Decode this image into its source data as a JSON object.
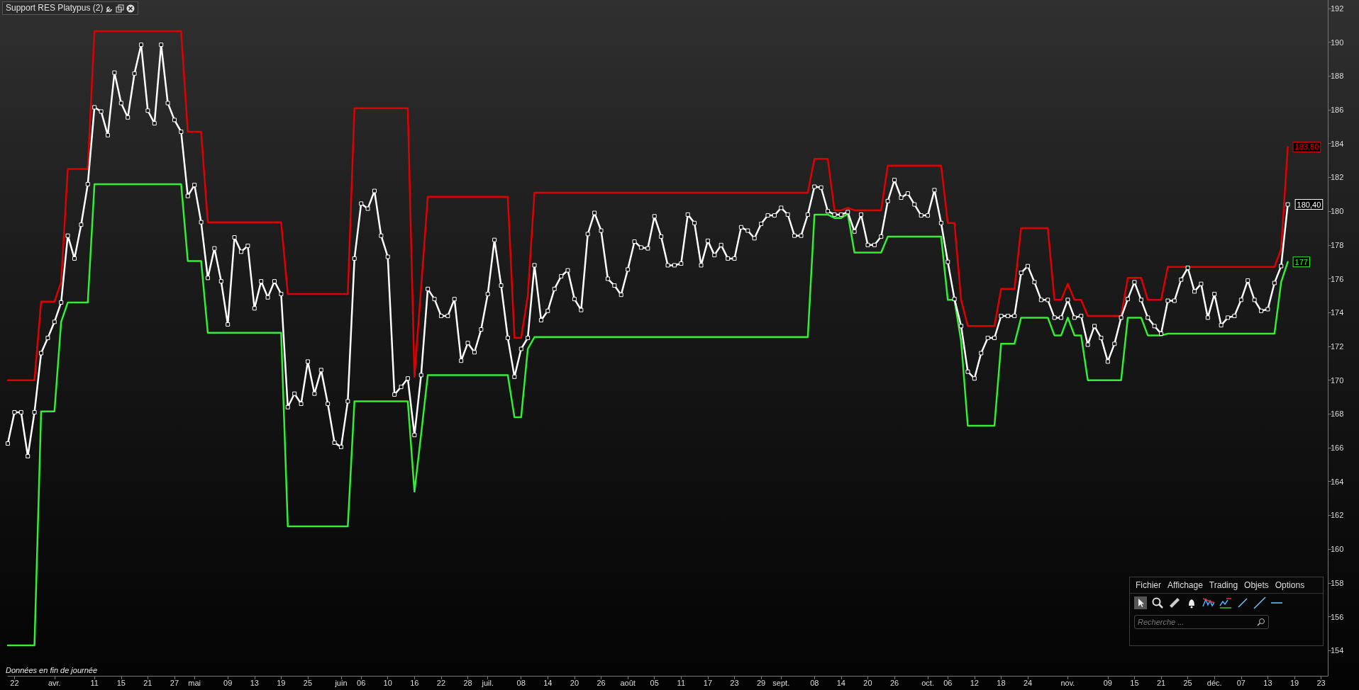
{
  "chart_data": {
    "type": "line",
    "title": "Support RES Platypus (2)",
    "categories": [
      null,
      "22",
      null,
      null,
      null,
      null,
      null,
      "avr.",
      null,
      null,
      null,
      null,
      null,
      "11",
      null,
      null,
      null,
      "15",
      null,
      null,
      null,
      "21",
      null,
      null,
      null,
      "27",
      null,
      null,
      "mai",
      null,
      null,
      null,
      null,
      "09",
      null,
      null,
      null,
      "13",
      null,
      null,
      null,
      "19",
      null,
      null,
      null,
      "25",
      null,
      null,
      null,
      null,
      "juin",
      null,
      null,
      "06",
      null,
      null,
      null,
      "10",
      null,
      null,
      null,
      "16",
      null,
      null,
      null,
      "22",
      null,
      null,
      null,
      "28",
      null,
      null,
      "juil.",
      null,
      null,
      null,
      null,
      "08",
      null,
      null,
      null,
      "14",
      null,
      null,
      null,
      "20",
      null,
      null,
      null,
      "26",
      null,
      null,
      null,
      "août",
      null,
      null,
      null,
      "05",
      null,
      null,
      null,
      "11",
      null,
      null,
      null,
      "17",
      null,
      null,
      null,
      "23",
      null,
      null,
      null,
      "29",
      null,
      null,
      "sept.",
      null,
      null,
      null,
      null,
      "08",
      null,
      null,
      null,
      "14",
      null,
      null,
      null,
      "20",
      null,
      null,
      null,
      "26",
      null,
      null,
      null,
      null,
      "oct.",
      null,
      null,
      "06",
      null,
      null,
      null,
      "12",
      null,
      null,
      null,
      "18",
      null,
      null,
      null,
      "24",
      null,
      null,
      null,
      null,
      null,
      "nov.",
      null,
      null,
      null,
      null,
      null,
      "09",
      null,
      null,
      null,
      "15",
      null,
      null,
      null,
      "21",
      null,
      null,
      null,
      "25",
      null,
      null,
      null,
      "déc.",
      null,
      null,
      null,
      "07",
      null,
      null,
      null,
      "13",
      null,
      null,
      null,
      "19",
      null,
      null,
      null,
      "23",
      null
    ],
    "series": [
      {
        "color": "#e00000",
        "marker": "none",
        "values": [
          170,
          170,
          170,
          170,
          170,
          174.65,
          174.65,
          174.65,
          175.8,
          182.5,
          182.5,
          182.5,
          182.5,
          190.65,
          190.65,
          190.65,
          190.65,
          190.65,
          190.65,
          190.65,
          190.65,
          190.65,
          190.65,
          190.65,
          190.65,
          190.65,
          190.65,
          184.7,
          184.7,
          184.7,
          179.35,
          179.35,
          179.35,
          179.35,
          179.35,
          179.35,
          179.35,
          179.35,
          179.35,
          179.35,
          179.35,
          179.35,
          175.1,
          175.1,
          175.1,
          175.1,
          175.1,
          175.1,
          175.1,
          175.1,
          175.1,
          175.1,
          186.1,
          186.1,
          186.1,
          186.1,
          186.1,
          186.1,
          186.1,
          186.1,
          186.1,
          170.2,
          175.5,
          180.85,
          180.85,
          180.85,
          180.85,
          180.85,
          180.85,
          180.85,
          180.85,
          180.85,
          180.85,
          180.85,
          180.85,
          180.85,
          172.5,
          172.5,
          175,
          181.1,
          181.1,
          181.1,
          181.1,
          181.1,
          181.1,
          181.1,
          181.1,
          181.1,
          181.1,
          181.1,
          181.1,
          181.1,
          181.1,
          181.1,
          181.1,
          181.1,
          181.1,
          181.1,
          181.1,
          181.1,
          181.1,
          181.1,
          181.1,
          181.1,
          181.1,
          181.1,
          181.1,
          181.1,
          181.1,
          181.1,
          181.1,
          181.1,
          181.1,
          181.1,
          181.1,
          181.1,
          181.1,
          181.1,
          181.1,
          181.1,
          181.1,
          183.1,
          183.1,
          183.1,
          180.05,
          180.05,
          180.2,
          180.05,
          180.05,
          180.05,
          180.05,
          180.05,
          182.7,
          182.7,
          182.7,
          182.7,
          182.7,
          182.7,
          182.7,
          182.7,
          182.7,
          179.3,
          179.3,
          174.75,
          173.2,
          173.2,
          173.2,
          173.2,
          173.2,
          175.4,
          175.4,
          175.4,
          179,
          179,
          179,
          179,
          179,
          174.75,
          174.75,
          175.7,
          174.75,
          174.75,
          173.8,
          173.8,
          173.8,
          173.8,
          173.8,
          173.8,
          176.05,
          176.05,
          176.05,
          174.75,
          174.75,
          174.75,
          176.7,
          176.7,
          176.7,
          176.7,
          176.7,
          176.7,
          176.7,
          176.7,
          176.7,
          176.7,
          176.7,
          176.7,
          176.7,
          176.7,
          176.7,
          176.7,
          176.7,
          177.75,
          183.8,
          null,
          null,
          null,
          null,
          null,
          null
        ],
        "value_labels": [
          null,
          null,
          null,
          null,
          null,
          null,
          null,
          null,
          null,
          null,
          null,
          null,
          null,
          null,
          null,
          null,
          null,
          null,
          null,
          null,
          null,
          null,
          null,
          null,
          null,
          null,
          null,
          null,
          null,
          null,
          null,
          null,
          null,
          null,
          null,
          null,
          null,
          null,
          null,
          null,
          null,
          null,
          null,
          null,
          null,
          null,
          null,
          null,
          null,
          null,
          null,
          null,
          null,
          null,
          null,
          null,
          null,
          null,
          null,
          null,
          null,
          null,
          null,
          null,
          null,
          null,
          null,
          null,
          null,
          null,
          null,
          null,
          null,
          null,
          null,
          null,
          null,
          null,
          null,
          null,
          null,
          null,
          null,
          null,
          null,
          null,
          null,
          null,
          null,
          null,
          null,
          null,
          null,
          null,
          null,
          null,
          null,
          null,
          null,
          null,
          null,
          null,
          null,
          null,
          null,
          null,
          null,
          null,
          null,
          null,
          null,
          null,
          null,
          null,
          null,
          null,
          null,
          null,
          null,
          null,
          null,
          null,
          null,
          null,
          null,
          null,
          null,
          null,
          null,
          null,
          null,
          null,
          null,
          null,
          null,
          null,
          null,
          null,
          null,
          null,
          null,
          null,
          null,
          null,
          null,
          null,
          null,
          null,
          null,
          null,
          null,
          null,
          null,
          null,
          null,
          null,
          null,
          null,
          null,
          null,
          null,
          null,
          null,
          null,
          null,
          null,
          null,
          null,
          null,
          null,
          null,
          null,
          null,
          null,
          null,
          null,
          null,
          null,
          null,
          null,
          null,
          null,
          null,
          null,
          null,
          null,
          null,
          null,
          null,
          null,
          null,
          null,
          "183,80",
          null,
          null,
          null,
          null,
          null,
          null
        ]
      },
      {
        "color": "#33ee33",
        "marker": "none",
        "values": [
          154.3,
          154.3,
          154.3,
          154.3,
          154.3,
          168.15,
          168.15,
          168.15,
          173.45,
          174.6,
          174.6,
          174.6,
          174.6,
          181.6,
          181.6,
          181.6,
          181.6,
          181.6,
          181.6,
          181.6,
          181.6,
          181.6,
          181.6,
          181.6,
          181.6,
          181.6,
          181.6,
          177.05,
          177.05,
          177.05,
          172.8,
          172.8,
          172.8,
          172.8,
          172.8,
          172.8,
          172.8,
          172.8,
          172.8,
          172.8,
          172.8,
          172.8,
          161.35,
          161.35,
          161.35,
          161.35,
          161.35,
          161.35,
          161.35,
          161.35,
          161.35,
          161.35,
          168.75,
          168.75,
          168.75,
          168.75,
          168.75,
          168.75,
          168.75,
          168.75,
          168.75,
          163.4,
          166.8,
          170.3,
          170.3,
          170.3,
          170.3,
          170.3,
          170.3,
          170.3,
          170.3,
          170.3,
          170.3,
          170.3,
          170.3,
          170.3,
          167.8,
          167.8,
          171.85,
          172.55,
          172.55,
          172.55,
          172.55,
          172.55,
          172.55,
          172.55,
          172.55,
          172.55,
          172.55,
          172.55,
          172.55,
          172.55,
          172.55,
          172.55,
          172.55,
          172.55,
          172.55,
          172.55,
          172.55,
          172.55,
          172.55,
          172.55,
          172.55,
          172.55,
          172.55,
          172.55,
          172.55,
          172.55,
          172.55,
          172.55,
          172.55,
          172.55,
          172.55,
          172.55,
          172.55,
          172.55,
          172.55,
          172.55,
          172.55,
          172.55,
          172.55,
          179.8,
          179.8,
          179.8,
          179.6,
          179.6,
          179.85,
          177.55,
          177.55,
          177.55,
          177.55,
          177.55,
          178.5,
          178.5,
          178.5,
          178.5,
          178.5,
          178.5,
          178.5,
          178.5,
          178.5,
          174.75,
          174.75,
          172.3,
          167.3,
          167.3,
          167.3,
          167.3,
          167.3,
          172.15,
          172.15,
          172.15,
          173.7,
          173.7,
          173.7,
          173.7,
          173.7,
          172.65,
          172.65,
          173.7,
          172.65,
          172.65,
          170,
          170,
          170,
          170,
          170,
          170,
          173.7,
          173.7,
          173.7,
          172.65,
          172.65,
          172.65,
          172.75,
          172.75,
          172.75,
          172.75,
          172.75,
          172.75,
          172.75,
          172.75,
          172.75,
          172.75,
          172.75,
          172.75,
          172.75,
          172.75,
          172.75,
          172.75,
          172.75,
          175.8,
          177,
          null,
          null,
          null,
          null,
          null,
          null
        ],
        "value_labels": [
          null,
          null,
          null,
          null,
          null,
          null,
          null,
          null,
          null,
          null,
          null,
          null,
          null,
          null,
          null,
          null,
          null,
          null,
          null,
          null,
          null,
          null,
          null,
          null,
          null,
          null,
          null,
          null,
          null,
          null,
          null,
          null,
          null,
          null,
          null,
          null,
          null,
          null,
          null,
          null,
          null,
          null,
          null,
          null,
          null,
          null,
          null,
          null,
          null,
          null,
          null,
          null,
          null,
          null,
          null,
          null,
          null,
          null,
          null,
          null,
          null,
          null,
          null,
          null,
          null,
          null,
          null,
          null,
          null,
          null,
          null,
          null,
          null,
          null,
          null,
          null,
          null,
          null,
          null,
          null,
          null,
          null,
          null,
          null,
          null,
          null,
          null,
          null,
          null,
          null,
          null,
          null,
          null,
          null,
          null,
          null,
          null,
          null,
          null,
          null,
          null,
          null,
          null,
          null,
          null,
          null,
          null,
          null,
          null,
          null,
          null,
          null,
          null,
          null,
          null,
          null,
          null,
          null,
          null,
          null,
          null,
          null,
          null,
          null,
          null,
          null,
          null,
          null,
          null,
          null,
          null,
          null,
          null,
          null,
          null,
          null,
          null,
          null,
          null,
          null,
          null,
          null,
          null,
          null,
          null,
          null,
          null,
          null,
          null,
          null,
          null,
          null,
          null,
          null,
          null,
          null,
          null,
          null,
          null,
          null,
          null,
          null,
          null,
          null,
          null,
          null,
          null,
          null,
          null,
          null,
          null,
          null,
          null,
          null,
          null,
          null,
          null,
          null,
          null,
          null,
          null,
          null,
          null,
          null,
          null,
          null,
          null,
          null,
          null,
          null,
          null,
          null,
          "177",
          null,
          null,
          null,
          null,
          null,
          null
        ]
      },
      {
        "color": "#ffffff",
        "marker": "square",
        "values": [
          166.25,
          168.1,
          168.1,
          165.5,
          168.1,
          171.6,
          172.5,
          173.45,
          174.6,
          178.55,
          177.2,
          179.2,
          181.6,
          186.15,
          185.9,
          184.5,
          188.2,
          186.4,
          185.55,
          188.15,
          189.85,
          185.95,
          185.2,
          189.85,
          186.4,
          185.4,
          184.7,
          180.9,
          181.55,
          179.35,
          176.05,
          177.8,
          175.85,
          173.3,
          178.45,
          177.6,
          177.95,
          174.25,
          175.85,
          174.9,
          175.85,
          175.1,
          168.4,
          169.2,
          168.6,
          171.1,
          169.2,
          170.6,
          168.6,
          166.3,
          166.05,
          168.75,
          177.2,
          180.45,
          180.15,
          181.2,
          178.55,
          177.3,
          169.15,
          169.6,
          170.1,
          166.75,
          170.3,
          175.4,
          174.8,
          173.8,
          173.8,
          174.8,
          171.15,
          172.2,
          171.65,
          173,
          175.1,
          178.3,
          175.6,
          172.5,
          170.2,
          171.85,
          172.5,
          176.8,
          173.55,
          174.1,
          175.4,
          176.15,
          176.5,
          174.8,
          174.15,
          178.65,
          179.9,
          178.85,
          176,
          175.6,
          175.05,
          176.55,
          178.2,
          177.85,
          177.8,
          179.7,
          178.5,
          176.8,
          176.8,
          176.9,
          179.8,
          179.3,
          176.8,
          178.25,
          177.4,
          178,
          177.2,
          177.2,
          179.05,
          178.85,
          178.4,
          179.25,
          179.75,
          179.75,
          180.2,
          179.8,
          178.55,
          178.55,
          179.8,
          181.45,
          181.4,
          180,
          179.8,
          179.8,
          179.95,
          178.8,
          179.8,
          178,
          178,
          178.5,
          180.6,
          181.85,
          180.8,
          181.05,
          180.4,
          179.75,
          179.75,
          181.25,
          179.3,
          177,
          174.8,
          173.2,
          170.5,
          170.1,
          171.6,
          172.5,
          172.5,
          173.8,
          173.8,
          173.8,
          176.35,
          176.75,
          175.8,
          174.75,
          174.75,
          173.7,
          173.7,
          174.75,
          173.7,
          173.8,
          172.1,
          173.2,
          172.5,
          171.1,
          172.15,
          173.7,
          174.8,
          175.8,
          174.75,
          173.7,
          173.2,
          172.75,
          174.7,
          174.7,
          175.95,
          176.65,
          175.25,
          175.7,
          173.7,
          175.1,
          173.25,
          173.7,
          173.8,
          174.75,
          175.9,
          174.75,
          174.1,
          174.2,
          175.75,
          176.75,
          180.4,
          null,
          null,
          null,
          null,
          null,
          null
        ],
        "value_labels": [
          null,
          null,
          null,
          null,
          null,
          null,
          null,
          null,
          null,
          null,
          null,
          null,
          null,
          null,
          null,
          null,
          null,
          null,
          null,
          null,
          null,
          null,
          null,
          null,
          null,
          null,
          null,
          null,
          null,
          null,
          null,
          null,
          null,
          null,
          null,
          null,
          null,
          null,
          null,
          null,
          null,
          null,
          null,
          null,
          null,
          null,
          null,
          null,
          null,
          null,
          null,
          null,
          null,
          null,
          null,
          null,
          null,
          null,
          null,
          null,
          null,
          null,
          null,
          null,
          null,
          null,
          null,
          null,
          null,
          null,
          null,
          null,
          null,
          null,
          null,
          null,
          null,
          null,
          null,
          null,
          null,
          null,
          null,
          null,
          null,
          null,
          null,
          null,
          null,
          null,
          null,
          null,
          null,
          null,
          null,
          null,
          null,
          null,
          null,
          null,
          null,
          null,
          null,
          null,
          null,
          null,
          null,
          null,
          null,
          null,
          null,
          null,
          null,
          null,
          null,
          null,
          null,
          null,
          null,
          null,
          null,
          null,
          null,
          null,
          null,
          null,
          null,
          null,
          null,
          null,
          null,
          null,
          null,
          null,
          null,
          null,
          null,
          null,
          null,
          null,
          null,
          null,
          null,
          null,
          null,
          null,
          null,
          null,
          null,
          null,
          null,
          null,
          null,
          null,
          null,
          null,
          null,
          null,
          null,
          null,
          null,
          null,
          null,
          null,
          null,
          null,
          null,
          null,
          null,
          null,
          null,
          null,
          null,
          null,
          null,
          null,
          null,
          null,
          null,
          null,
          null,
          null,
          null,
          null,
          null,
          null,
          null,
          null,
          null,
          null,
          null,
          null,
          "180,40",
          null,
          null,
          null,
          null,
          null,
          null
        ]
      }
    ],
    "ylim": [
      152.5,
      192.5
    ],
    "yticks": [
      154,
      156,
      158,
      160,
      162,
      164,
      166,
      168,
      170,
      172,
      174,
      176,
      178,
      180,
      182,
      184,
      186,
      188,
      190,
      192
    ],
    "line_style": "solid",
    "annotations": [
      "Données en fin de journée",
      "Fichier",
      "Affichage",
      "Trading",
      "Objets",
      "Options",
      "Recherche ..."
    ]
  }
}
